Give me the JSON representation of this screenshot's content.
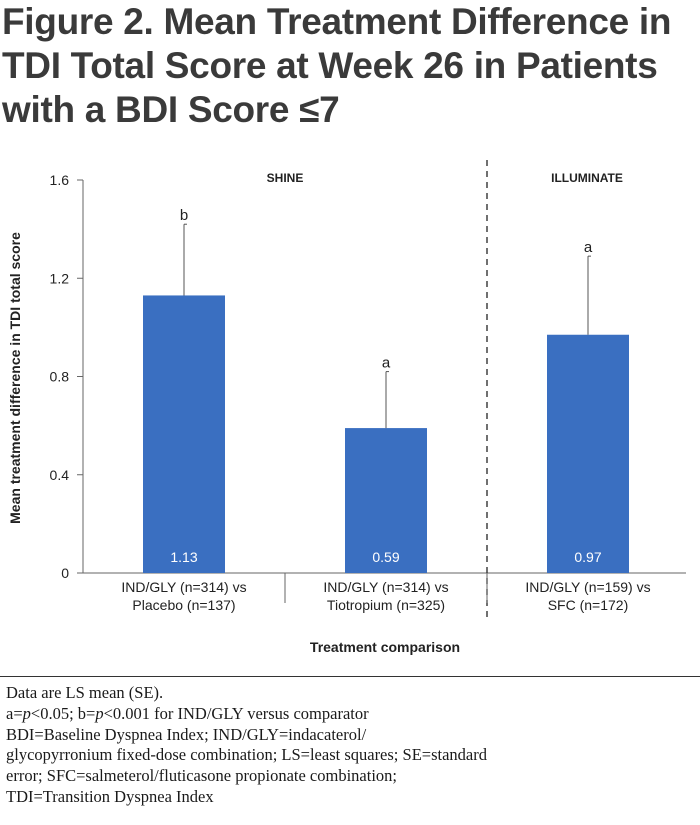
{
  "title": "Figure 2. Mean Treatment Difference in TDI Total Score at Week 26 in Patients with a BDI Score ≤7",
  "chart_data": {
    "type": "bar",
    "xlabel": "Treatment comparison",
    "ylabel": "Mean treatment difference in TDI total score",
    "ylim": [
      0,
      1.6
    ],
    "yticks": [
      "0",
      "0.4",
      "0.8",
      "1.2",
      "1.6"
    ],
    "bar_color": "#3a6fc1",
    "groups": [
      {
        "label": "SHINE"
      },
      {
        "label": "ILLUMINATE"
      }
    ],
    "bars": [
      {
        "category_line1": "IND/GLY (n=314) vs",
        "category_line2": "Placebo (n=137)",
        "value": 1.13,
        "value_label": "1.13",
        "error_upper": 1.42,
        "significance": "b",
        "group": "SHINE"
      },
      {
        "category_line1": "IND/GLY (n=314) vs",
        "category_line2": "Tiotropium (n=325)",
        "value": 0.59,
        "value_label": "0.59",
        "error_upper": 0.82,
        "significance": "a",
        "group": "SHINE"
      },
      {
        "category_line1": "IND/GLY (n=159) vs",
        "category_line2": "SFC (n=172)",
        "value": 0.97,
        "value_label": "0.97",
        "error_upper": 1.29,
        "significance": "a",
        "group": "ILLUMINATE"
      }
    ]
  },
  "footnotes": {
    "line1": "Data are LS mean (SE).",
    "line2_a": "a=",
    "line2_p1": "p",
    "line2_b": "<0.05; b=",
    "line2_p2": "p",
    "line2_c": "<0.001 for IND/GLY versus comparator",
    "line3": "BDI=Baseline Dyspnea Index; IND/GLY=indacaterol/",
    "line4": "glycopyrronium fixed-dose combination; LS=least squares; SE=standard",
    "line5": "error; SFC=salmeterol/fluticasone propionate combination;",
    "line6": "TDI=Transition Dyspnea Index"
  }
}
